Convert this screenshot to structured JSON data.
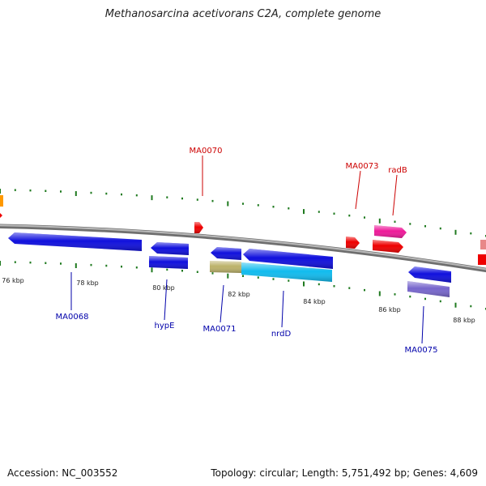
{
  "title": "Methanosarcina acetivorans C2A, complete genome",
  "footer": {
    "accession": "Accession: NC_003552",
    "summary": "Topology: circular; Length: 5,751,492 bp; Genes: 4,609"
  },
  "colors": {
    "background": "#ffffff",
    "backbone": "#8a8a8a",
    "tick": "#1f7a1f",
    "forward_label": "#cc0000",
    "reverse_label": "#0000aa",
    "blue_gene": "#1010dd",
    "red_gene": "#ee0000",
    "pink_gene": "#ee1a9a",
    "cyan_gene": "#11bbee",
    "khaki_gene": "#bcb26a",
    "lavender_gene": "#7766cc",
    "salmon_gene": "#e88888",
    "orange_gene": "#ff9900"
  },
  "scale_labels": [
    "76 kbp",
    "78 kbp",
    "80 kbp",
    "82 kbp",
    "84 kbp",
    "86 kbp",
    "88 kbp"
  ],
  "gene_labels": {
    "forward": [
      "MA0070",
      "MA0073",
      "radB"
    ],
    "reverse": [
      "MA0068",
      "hypE",
      "MA0071",
      "nrdD",
      "MA0075"
    ]
  }
}
